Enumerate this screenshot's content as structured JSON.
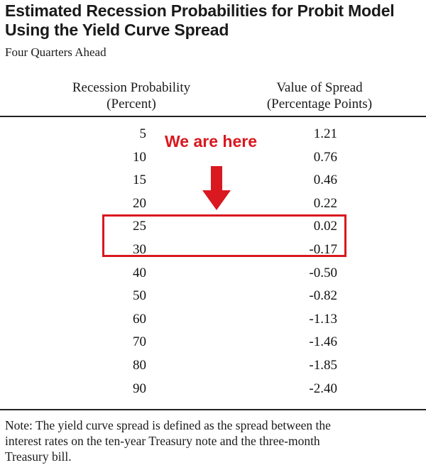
{
  "title": {
    "line1": "Estimated Recession Probabilities for Probit Model",
    "line2": "Using the Yield Curve Spread"
  },
  "subtitle": "Four Quarters Ahead",
  "columns": {
    "left": {
      "line1": "Recession Probability",
      "line2": "(Percent)"
    },
    "right": {
      "line1": "Value of Spread",
      "line2": "(Percentage Points)"
    }
  },
  "rows": [
    {
      "probability": "5",
      "spread": "1.21"
    },
    {
      "probability": "10",
      "spread": "0.76"
    },
    {
      "probability": "15",
      "spread": "0.46"
    },
    {
      "probability": "20",
      "spread": "0.22"
    },
    {
      "probability": "25",
      "spread": "0.02"
    },
    {
      "probability": "30",
      "spread": "-0.17"
    },
    {
      "probability": "40",
      "spread": "-0.50"
    },
    {
      "probability": "50",
      "spread": "-0.82"
    },
    {
      "probability": "60",
      "spread": "-1.13"
    },
    {
      "probability": "70",
      "spread": "-1.46"
    },
    {
      "probability": "80",
      "spread": "-1.85"
    },
    {
      "probability": "90",
      "spread": "-2.40"
    }
  ],
  "annotation": {
    "text": "We are here",
    "color": "#d9181f",
    "highlighted_rows": [
      "25",
      "30"
    ]
  },
  "note": {
    "line1": "Note:  The yield curve spread is defined as the spread between the",
    "line2": "interest rates on the ten-year Treasury note and the three-month",
    "line3": "Treasury bill."
  }
}
